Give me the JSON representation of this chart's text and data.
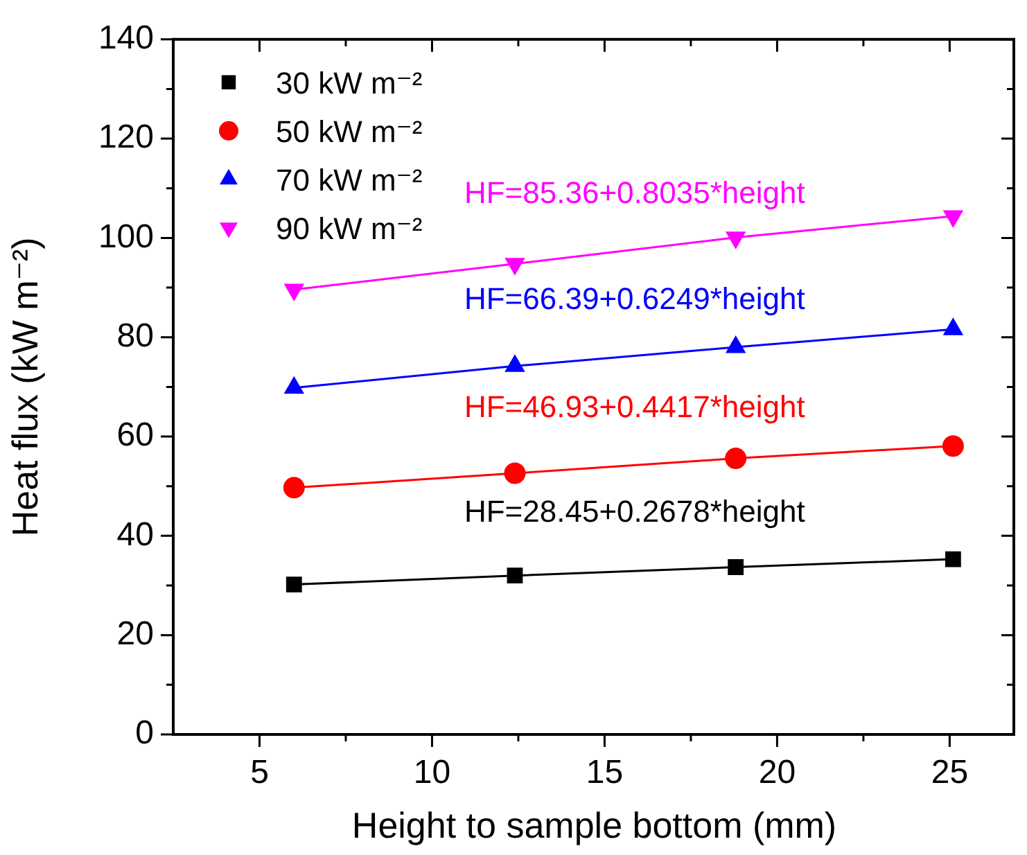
{
  "chart_data": {
    "type": "line",
    "xlabel": "Height to sample bottom (mm)",
    "ylabel": "Heat flux (kW m⁻²)",
    "x": [
      6.0,
      12.4,
      18.8,
      25.1
    ],
    "series": [
      {
        "name": "30 kW m⁻²",
        "color": "#000000",
        "marker": "square",
        "values": [
          30.2,
          32.0,
          33.7,
          35.3
        ]
      },
      {
        "name": "50 kW m⁻²",
        "color": "#ff0000",
        "marker": "circle",
        "values": [
          49.7,
          52.6,
          55.6,
          58.1
        ]
      },
      {
        "name": "70 kW m⁻²",
        "color": "#0000ff",
        "marker": "triangle",
        "values": [
          69.8,
          74.2,
          78.0,
          81.6
        ]
      },
      {
        "name": "90 kW m⁻²",
        "color": "#ff00ff",
        "marker": "triangle-down",
        "values": [
          89.6,
          94.8,
          100.1,
          104.4
        ]
      }
    ],
    "annotations": [
      "HF=28.45+0.2678*height",
      "HF=46.93+0.4417*height",
      "HF=66.39+0.6249*height",
      "HF=85.36+0.8035*height"
    ],
    "xlim": [
      2.5,
      26.9
    ],
    "xticks": [
      5,
      {
        "value": 7.5,
        "label": null
      },
      10,
      {
        "value": 12.5,
        "label": null
      },
      15,
      {
        "value": 17.5,
        "label": null
      },
      20,
      {
        "value": 22.5,
        "label": null
      },
      25
    ],
    "ylim": [
      0,
      140
    ],
    "yticks": [
      0,
      {
        "value": 10,
        "label": null
      },
      20,
      {
        "value": 30,
        "label": null
      },
      40,
      {
        "value": 50,
        "label": null
      },
      60,
      {
        "value": 70,
        "label": null
      },
      80,
      {
        "value": 90,
        "label": null
      },
      100,
      {
        "value": 110,
        "label": null
      },
      120,
      {
        "value": 130,
        "label": null
      },
      140
    ],
    "grid": false,
    "legend": "top left",
    "line_style": "solid"
  }
}
